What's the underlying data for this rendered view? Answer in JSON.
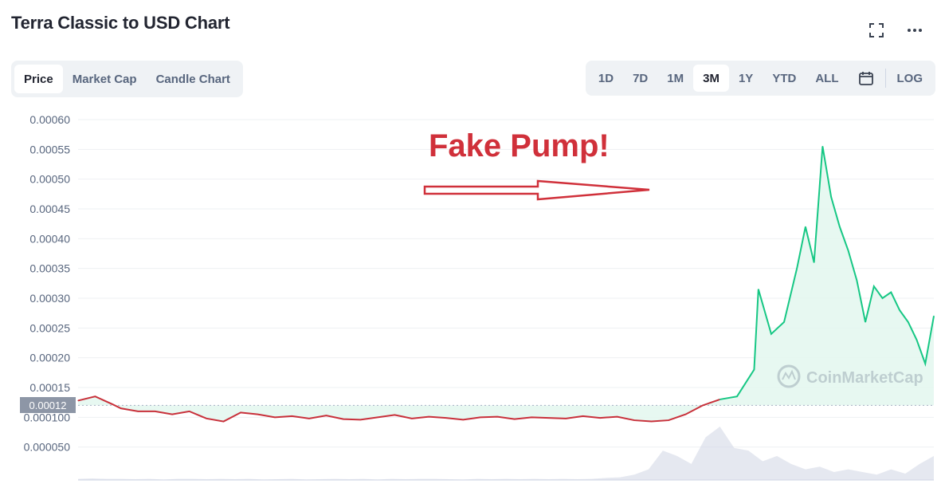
{
  "header": {
    "title": "Terra Classic to USD Chart",
    "icons": [
      "fullscreen-icon",
      "more-icon"
    ]
  },
  "tabs": [
    {
      "label": "Price",
      "active": true
    },
    {
      "label": "Market Cap",
      "active": false
    },
    {
      "label": "Candle Chart",
      "active": false
    }
  ],
  "ranges": [
    {
      "label": "1D",
      "active": false
    },
    {
      "label": "7D",
      "active": false
    },
    {
      "label": "1M",
      "active": false
    },
    {
      "label": "3M",
      "active": true
    },
    {
      "label": "1Y",
      "active": false
    },
    {
      "label": "YTD",
      "active": false
    },
    {
      "label": "ALL",
      "active": false
    }
  ],
  "range_extra": {
    "calendar_icon": "calendar-icon",
    "log_label": "LOG"
  },
  "annotation": {
    "text": "Fake Pump!",
    "color": "#d0303a"
  },
  "watermark": {
    "text": "CoinMarketCap"
  },
  "colors": {
    "up": "#16c784",
    "down": "#c8303a",
    "fill": "#e3f7ee",
    "volume": "#cfd6e4"
  },
  "chart_data": {
    "type": "line",
    "title": "Terra Classic to USD Chart",
    "y_ticks": [
      "0.00060",
      "0.00055",
      "0.00050",
      "0.00045",
      "0.00040",
      "0.00035",
      "0.00030",
      "0.00025",
      "0.00020",
      "0.00015",
      "0.000100",
      "0.000050"
    ],
    "ylim": [
      0.0,
      0.0006
    ],
    "baseline": {
      "value": 0.00012,
      "label": "0.00012"
    },
    "x_index_range": [
      0,
      100
    ],
    "series": [
      {
        "x": [
          0,
          2,
          4,
          5,
          7,
          9,
          11,
          13,
          15,
          17,
          19,
          21,
          23,
          25,
          27,
          29,
          31,
          33,
          35,
          37,
          39,
          41,
          43,
          45,
          47,
          49,
          51,
          53,
          55,
          57,
          59,
          61,
          63,
          65,
          67,
          69,
          71,
          73,
          75,
          77,
          79,
          79.5,
          81,
          82.5,
          84,
          85,
          86,
          87,
          88,
          89,
          90,
          91,
          92,
          93,
          94,
          95,
          96,
          97,
          98,
          99,
          100
        ],
        "y": [
          0.000128,
          0.000135,
          0.000122,
          0.000115,
          0.00011,
          0.00011,
          0.000105,
          0.00011,
          9.8e-05,
          9.3e-05,
          0.000108,
          0.000105,
          0.0001,
          0.000102,
          9.8e-05,
          0.000103,
          9.7e-05,
          9.6e-05,
          0.0001,
          0.000104,
          9.8e-05,
          0.000101,
          9.9e-05,
          9.6e-05,
          0.0001,
          0.000101,
          9.7e-05,
          0.0001,
          9.9e-05,
          9.8e-05,
          0.000102,
          9.9e-05,
          0.000101,
          9.5e-05,
          9.3e-05,
          9.5e-05,
          0.000105,
          0.00012,
          0.00013,
          0.000135,
          0.00018,
          0.000315,
          0.00024,
          0.00026,
          0.00035,
          0.00042,
          0.00036,
          0.000555,
          0.00047,
          0.00042,
          0.00038,
          0.00033,
          0.00026,
          0.00032,
          0.0003,
          0.00031,
          0.00028,
          0.00026,
          0.00023,
          0.00019,
          0.00027
        ]
      }
    ],
    "volume": [
      0.02,
      0.03,
      0.02,
      0.02,
      0.015,
      0.02,
      0.01,
      0.02,
      0.02,
      0.015,
      0.02,
      0.015,
      0.02,
      0.01,
      0.015,
      0.02,
      0.01,
      0.015,
      0.02,
      0.015,
      0.02,
      0.01,
      0.02,
      0.015,
      0.02,
      0.02,
      0.015,
      0.01,
      0.02,
      0.015,
      0.02,
      0.015,
      0.02,
      0.015,
      0.02,
      0.015,
      0.02,
      0.04,
      0.05,
      0.1,
      0.2,
      0.55,
      0.45,
      0.3,
      0.8,
      1.0,
      0.6,
      0.55,
      0.35,
      0.45,
      0.3,
      0.2,
      0.25,
      0.15,
      0.2,
      0.15,
      0.1,
      0.2,
      0.12,
      0.3,
      0.45
    ]
  }
}
